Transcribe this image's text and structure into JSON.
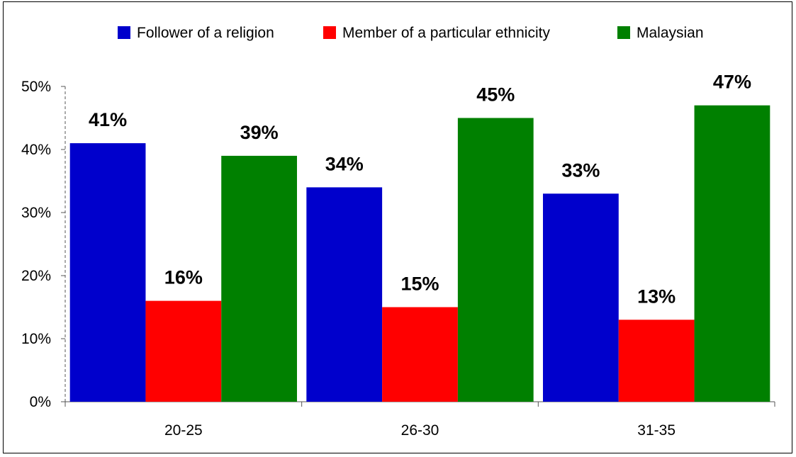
{
  "chart_data": {
    "type": "bar",
    "categories": [
      "20-25",
      "26-30",
      "31-35"
    ],
    "series": [
      {
        "name": "Follower of a religion",
        "color": "#0000cc",
        "values": [
          41,
          34,
          33
        ],
        "labels": [
          "41%",
          "34%",
          "33%"
        ]
      },
      {
        "name": "Member of a particular ethnicity",
        "color": "#ff0000",
        "values": [
          16,
          15,
          13
        ],
        "labels": [
          "16%",
          "15%",
          "13%"
        ]
      },
      {
        "name": "Malaysian",
        "color": "#008000",
        "values": [
          39,
          45,
          47
        ],
        "labels": [
          "39%",
          "45%",
          "47%"
        ]
      }
    ],
    "ylim": [
      0,
      50
    ],
    "yticks": [
      0,
      10,
      20,
      30,
      40,
      50
    ],
    "ytick_labels": [
      "0%",
      "10%",
      "20%",
      "30%",
      "40%",
      "50%"
    ],
    "title": "",
    "xlabel": "",
    "ylabel": "",
    "legend_position": "top",
    "grid": false
  }
}
